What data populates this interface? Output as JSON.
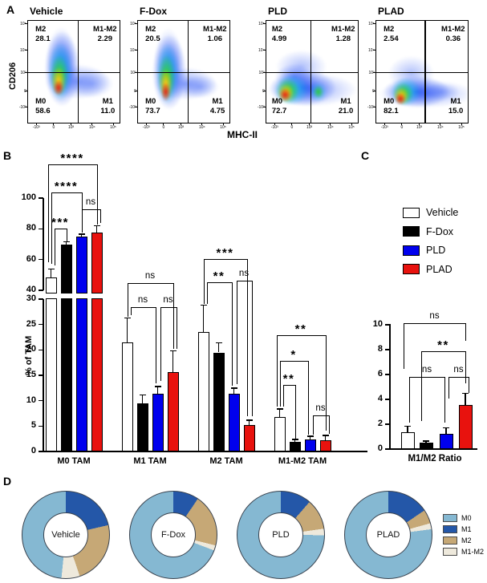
{
  "panels": {
    "a": "A",
    "b": "B",
    "c": "C",
    "d": "D"
  },
  "panel_a": {
    "y_axis_label": "CD206",
    "x_axis_label": "MHC-II",
    "y_ticks": [
      "10⁵",
      "10⁴",
      "10³",
      "0",
      "-10³"
    ],
    "x_ticks": [
      "-10³",
      "0",
      "10³",
      "10⁴",
      "10⁵"
    ],
    "plots": [
      {
        "title": "Vehicle",
        "m2_label": "M2",
        "m2": "28.1",
        "m1m2_label": "M1-M2",
        "m1m2": "2.29",
        "m0_label": "M0",
        "m0": "58.6",
        "m1_label": "M1",
        "m1": "11.0"
      },
      {
        "title": "F-Dox",
        "m2_label": "M2",
        "m2": "20.5",
        "m1m2_label": "M1-M2",
        "m1m2": "1.06",
        "m0_label": "M0",
        "m0": "73.7",
        "m1_label": "M1",
        "m1": "4.75"
      },
      {
        "title": "PLD",
        "m2_label": "M2",
        "m2": "4.99",
        "m1m2_label": "M1-M2",
        "m1m2": "1.28",
        "m0_label": "M0",
        "m0": "72.7",
        "m1_label": "M1",
        "m1": "21.0"
      },
      {
        "title": "PLAD",
        "m2_label": "M2",
        "m2": "2.54",
        "m1m2_label": "M1-M2",
        "m1m2": "0.36",
        "m0_label": "M0",
        "m0": "82.1",
        "m1_label": "M1",
        "m1": "15.0"
      }
    ]
  },
  "chart_data": [
    {
      "id": "panel_b",
      "type": "bar",
      "title": "",
      "ylabel": "% of TAM",
      "categories": [
        "M0 TAM",
        "M1 TAM",
        "M2 TAM",
        "M1-M2 TAM"
      ],
      "series": [
        {
          "name": "Vehicle",
          "color": "#ffffff",
          "values": [
            48.5,
            21.5,
            23.5,
            6.8
          ],
          "errors": [
            5.5,
            4.8,
            5.3,
            1.6
          ]
        },
        {
          "name": "F-Dox",
          "color": "#000000",
          "values": [
            69.5,
            9.5,
            19.5,
            1.9
          ],
          "errors": [
            2.0,
            1.6,
            1.9,
            0.5
          ]
        },
        {
          "name": "PLD",
          "color": "#0000ee",
          "values": [
            75.0,
            11.4,
            11.3,
            2.4
          ],
          "errors": [
            1.5,
            1.4,
            1.2,
            0.6
          ]
        },
        {
          "name": "PLAD",
          "color": "#e8120e",
          "values": [
            77.5,
            15.6,
            5.2,
            2.2
          ],
          "errors": [
            4.5,
            4.2,
            1.0,
            1.0
          ]
        }
      ],
      "y_axis_break": [
        30,
        40
      ],
      "lower_ticks": [
        0,
        5,
        10,
        15,
        20,
        25,
        30
      ],
      "upper_ticks": [
        40,
        60,
        80,
        100
      ],
      "grid": false,
      "significance": [
        {
          "group": 0,
          "from": 0,
          "to": 1,
          "label": "***"
        },
        {
          "group": 0,
          "from": 0,
          "to": 2,
          "label": "****"
        },
        {
          "group": 0,
          "from": 0,
          "to": 3,
          "label": "****"
        },
        {
          "group": 0,
          "from": 2,
          "to": 3,
          "label": "ns"
        },
        {
          "group": 1,
          "from": 0,
          "to": 3,
          "label": "ns"
        },
        {
          "group": 1,
          "from": 0,
          "to": 2,
          "label": "ns"
        },
        {
          "group": 1,
          "from": 2,
          "to": 3,
          "label": "ns"
        },
        {
          "group": 2,
          "from": 0,
          "to": 2,
          "label": "**"
        },
        {
          "group": 2,
          "from": 0,
          "to": 3,
          "label": "***"
        },
        {
          "group": 2,
          "from": 2,
          "to": 3,
          "label": "ns"
        },
        {
          "group": 3,
          "from": 0,
          "to": 1,
          "label": "**"
        },
        {
          "group": 3,
          "from": 0,
          "to": 2,
          "label": "*"
        },
        {
          "group": 3,
          "from": 0,
          "to": 3,
          "label": "**"
        },
        {
          "group": 3,
          "from": 2,
          "to": 3,
          "label": "ns"
        }
      ]
    },
    {
      "id": "panel_c",
      "type": "bar",
      "xlabel": "M1/M2 Ratio",
      "categories": [
        "Vehicle",
        "F-Dox",
        "PLD",
        "PLAD"
      ],
      "values": [
        1.35,
        0.5,
        1.25,
        3.55
      ],
      "errors": [
        0.5,
        0.15,
        0.45,
        0.95
      ],
      "colors": [
        "#ffffff",
        "#000000",
        "#0000ee",
        "#e8120e"
      ],
      "ylim": [
        0,
        10
      ],
      "y_ticks": [
        0,
        2,
        4,
        6,
        8,
        10
      ],
      "grid": false,
      "significance": [
        {
          "from": 0,
          "to": 3,
          "label": "ns"
        },
        {
          "from": 1,
          "to": 3,
          "label": "**"
        },
        {
          "from": 0,
          "to": 2,
          "label": "ns"
        },
        {
          "from": 2,
          "to": 3,
          "label": "ns"
        }
      ]
    },
    {
      "id": "panel_d",
      "type": "pie",
      "palette": {
        "M0": "#85b8d2",
        "M1": "#2457a8",
        "M2": "#c6a876",
        "M1-M2": "#eee9dc"
      },
      "legend": [
        {
          "label": "M0",
          "color": "#85b8d2"
        },
        {
          "label": "M1",
          "color": "#2457a8"
        },
        {
          "label": "M2",
          "color": "#c6a876"
        },
        {
          "label": "M1-M2",
          "color": "#eee9dc"
        }
      ],
      "donuts": [
        {
          "label": "Vehicle",
          "segments": [
            {
              "name": "M1",
              "value": 21.4
            },
            {
              "name": "M2",
              "value": 23.4
            },
            {
              "name": "M1-M2",
              "value": 6.8
            },
            {
              "name": "M0",
              "value": 48.4
            }
          ]
        },
        {
          "label": "F-Dox",
          "segments": [
            {
              "name": "M1",
              "value": 9.5
            },
            {
              "name": "M2",
              "value": 19.4
            },
            {
              "name": "M1-M2",
              "value": 1.9
            },
            {
              "name": "M0",
              "value": 69.2
            }
          ]
        },
        {
          "label": "PLD",
          "segments": [
            {
              "name": "M1",
              "value": 11.4
            },
            {
              "name": "M2",
              "value": 11.3
            },
            {
              "name": "M1-M2",
              "value": 2.4
            },
            {
              "name": "M0",
              "value": 74.9
            }
          ]
        },
        {
          "label": "PLAD",
          "segments": [
            {
              "name": "M1",
              "value": 15.5
            },
            {
              "name": "M2",
              "value": 5.2
            },
            {
              "name": "M1-M2",
              "value": 2.2
            },
            {
              "name": "M0",
              "value": 77.1
            }
          ]
        }
      ]
    }
  ]
}
